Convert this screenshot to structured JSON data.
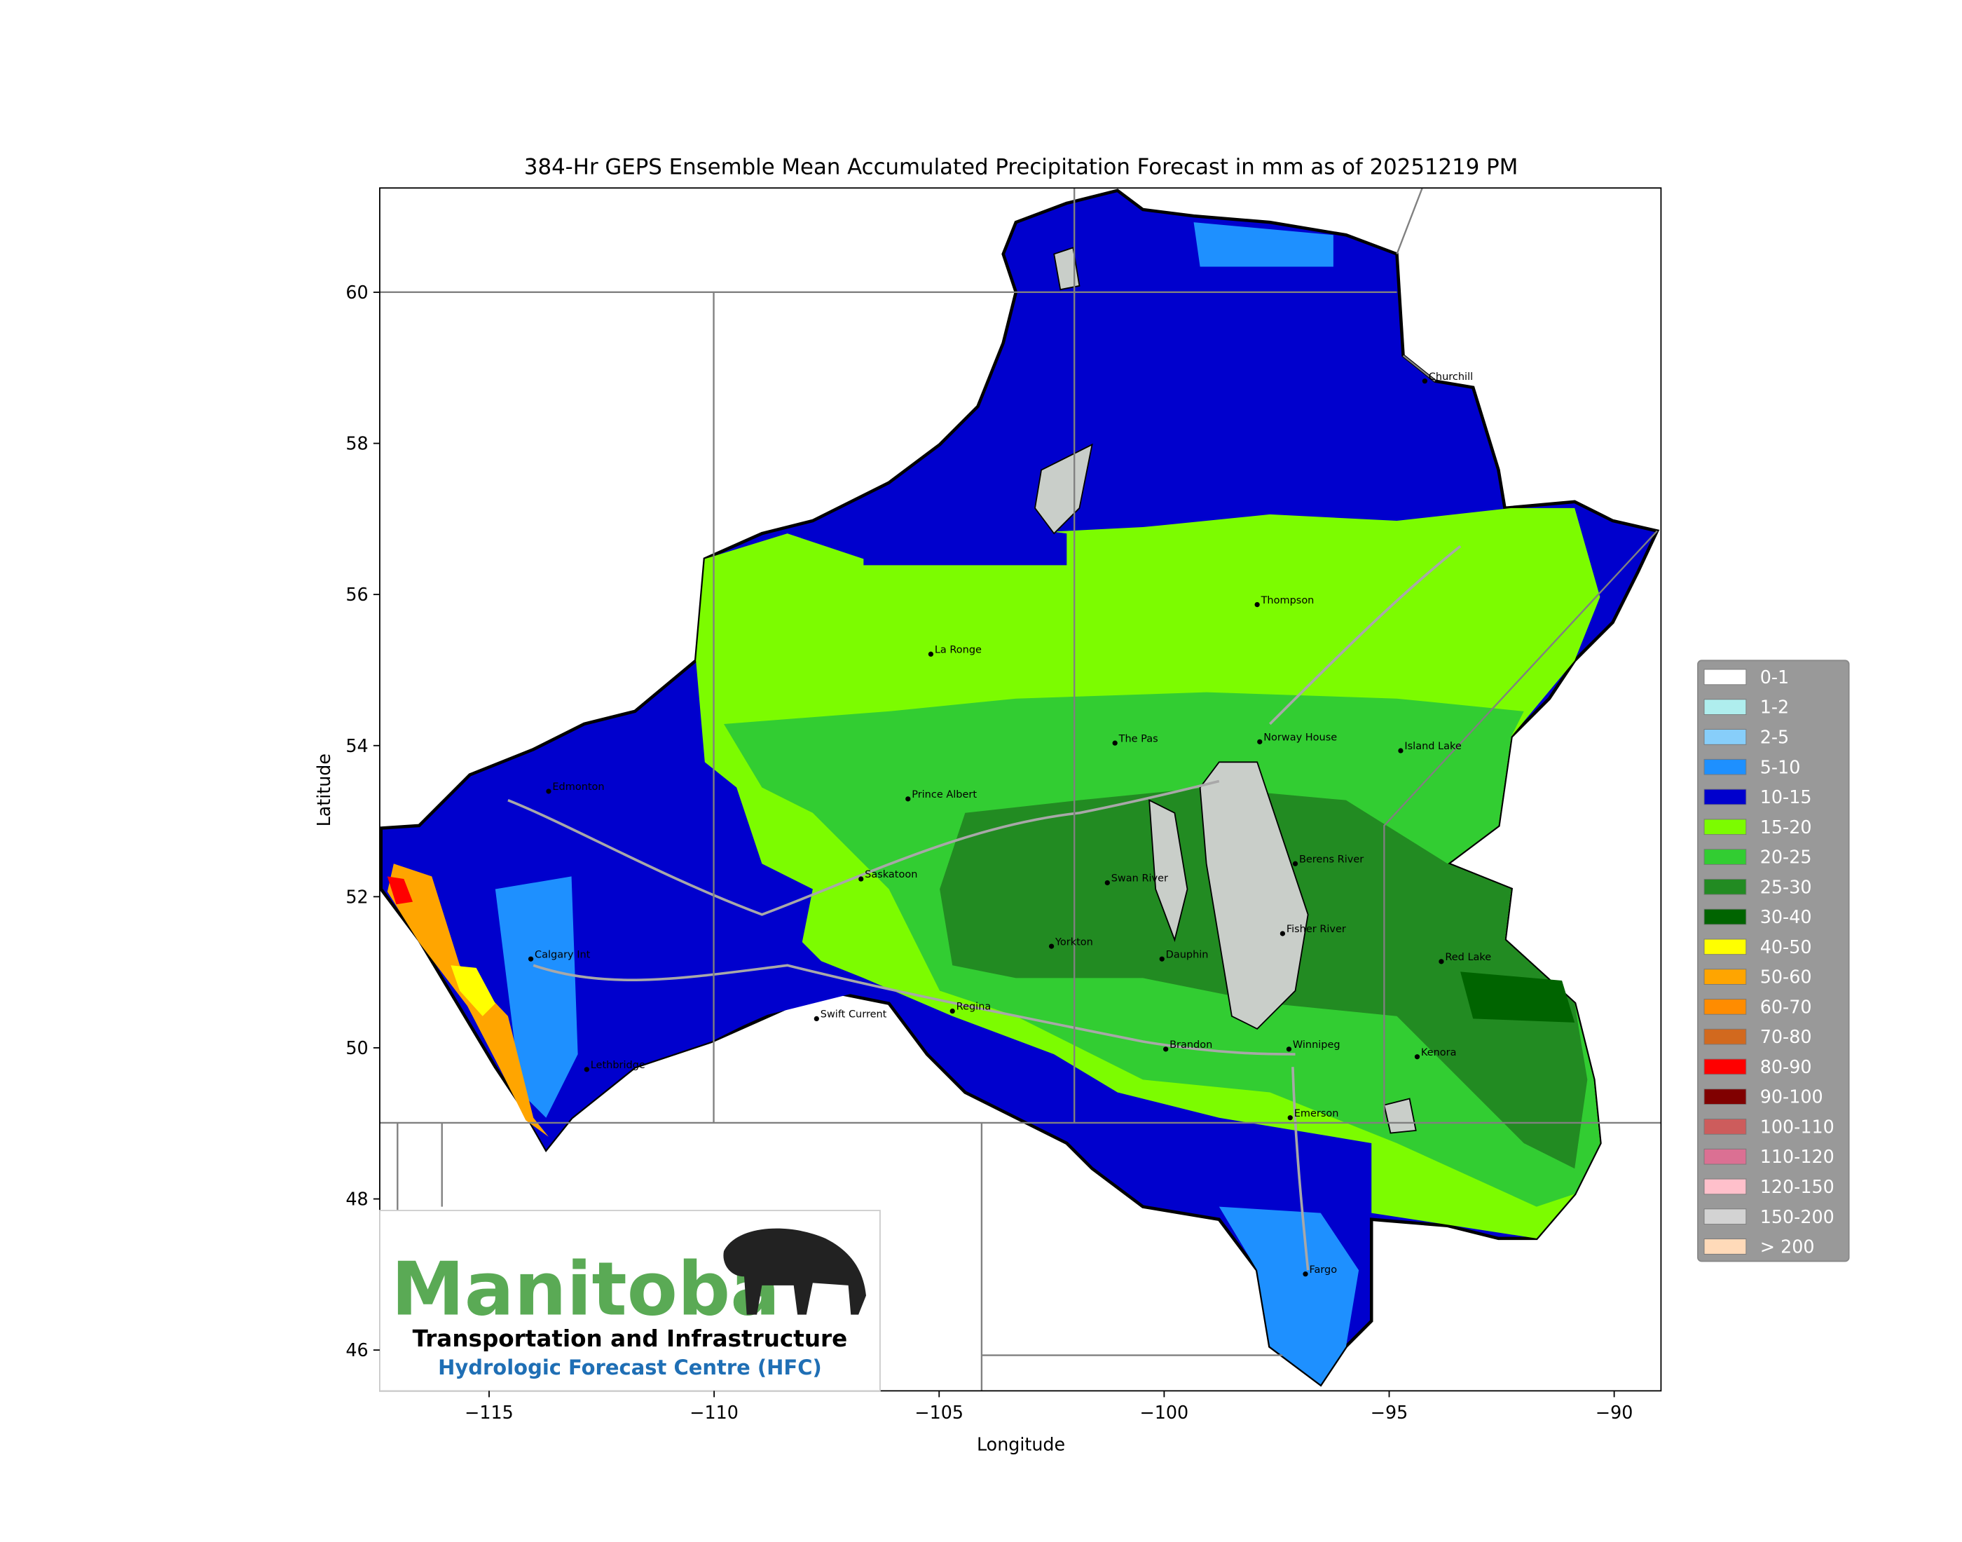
{
  "chart_data": {
    "type": "map",
    "title": "384-Hr GEPS Ensemble Mean Accumulated Precipitation Forecast in mm as of 20251219 PM",
    "x_label": "Longitude",
    "y_label": "Latitude",
    "xlim": [
      -117.43,
      -88.96
    ],
    "ylim": [
      45.46,
      61.38
    ],
    "xticks": [
      {
        "value": -115,
        "label": "−115"
      },
      {
        "value": -110,
        "label": "−110"
      },
      {
        "value": -105,
        "label": "−105"
      },
      {
        "value": -100,
        "label": "−100"
      },
      {
        "value": -95,
        "label": "−95"
      },
      {
        "value": -90,
        "label": "−90"
      }
    ],
    "yticks": [
      46,
      48,
      50,
      52,
      54,
      56,
      58,
      60
    ],
    "legend": [
      {
        "label": "0-1",
        "color": "#ffffff"
      },
      {
        "label": "1-2",
        "color": "#afeeee"
      },
      {
        "label": "2-5",
        "color": "#87cefa"
      },
      {
        "label": "5-10",
        "color": "#1e90ff"
      },
      {
        "label": "10-15",
        "color": "#0000cd"
      },
      {
        "label": "15-20",
        "color": "#7cfc00"
      },
      {
        "label": "20-25",
        "color": "#32cd32"
      },
      {
        "label": "25-30",
        "color": "#228b22"
      },
      {
        "label": "30-40",
        "color": "#006400"
      },
      {
        "label": "40-50",
        "color": "#ffff00"
      },
      {
        "label": "50-60",
        "color": "#ffa500"
      },
      {
        "label": "60-70",
        "color": "#ff8c00"
      },
      {
        "label": "70-80",
        "color": "#d2691e"
      },
      {
        "label": "80-90",
        "color": "#ff0000"
      },
      {
        "label": "90-100",
        "color": "#800000"
      },
      {
        "label": "100-110",
        "color": "#cd5c5c"
      },
      {
        "label": "110-120",
        "color": "#db7093"
      },
      {
        "label": "120-150",
        "color": "#ffc0cb"
      },
      {
        "label": "150-200",
        "color": "#d3d3d3"
      },
      {
        "label": "> 200",
        "color": "#ffdab9"
      }
    ],
    "cities": [
      "Churchill",
      "Thompson",
      "La Ronge",
      "Norway House",
      "Island Lake",
      "Prince Albert",
      "Berens River",
      "Saskatoon",
      "Swan River",
      "Yorkton",
      "Fisher River",
      "Dauphin",
      "Red Lake",
      "Calgary Int",
      "Regina",
      "Swift Current",
      "Brandon",
      "Winnipeg",
      "Kenora",
      "Lethbridge",
      "Emerson",
      "Fargo",
      "The Pas",
      "Edmonton"
    ]
  },
  "logo": {
    "name": "Manitoba",
    "department": "Transportation and Infrastructure",
    "centre": "Hydrologic Forecast Centre (HFC)"
  }
}
